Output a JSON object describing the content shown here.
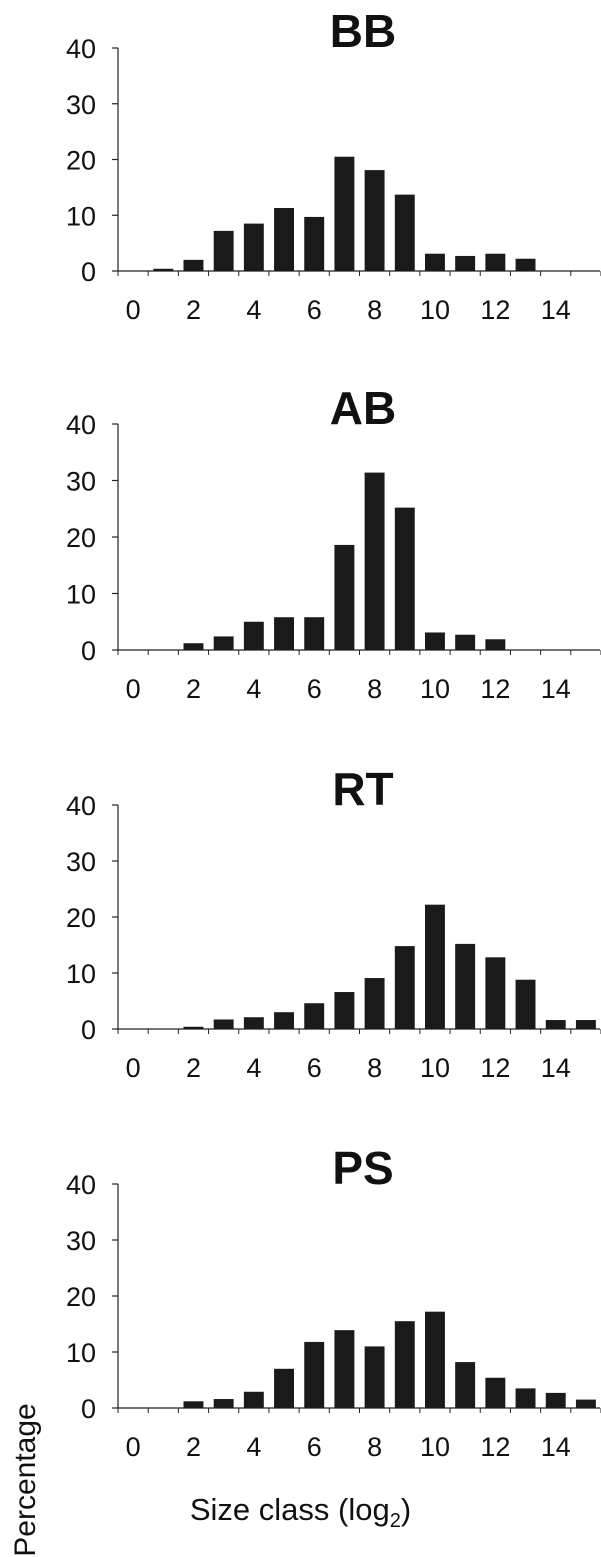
{
  "chart_data": [
    {
      "type": "bar",
      "title": "BB",
      "x": [
        1,
        2,
        3,
        4,
        5,
        6,
        7,
        8,
        9,
        10,
        11,
        12,
        13
      ],
      "values": [
        0.4,
        2.0,
        7.2,
        8.5,
        11.3,
        9.7,
        20.5,
        18.1,
        13.7,
        3.1,
        2.7,
        3.1,
        2.2
      ],
      "ylim": [
        0,
        40
      ],
      "yticks": [
        0,
        10,
        20,
        30,
        40
      ],
      "xticks": [
        0,
        2,
        4,
        6,
        8,
        10,
        12,
        14
      ],
      "xlim": [
        -0.5,
        15.5
      ],
      "grid": false
    },
    {
      "type": "bar",
      "title": "AB",
      "x": [
        2,
        3,
        4,
        5,
        6,
        7,
        8,
        9,
        10,
        11,
        12
      ],
      "values": [
        1.2,
        2.4,
        5.0,
        5.8,
        5.8,
        18.6,
        31.4,
        25.2,
        3.1,
        2.7,
        1.9
      ],
      "ylim": [
        0,
        40
      ],
      "yticks": [
        0,
        10,
        20,
        30,
        40
      ],
      "xticks": [
        0,
        2,
        4,
        6,
        8,
        10,
        12,
        14
      ],
      "xlim": [
        -0.5,
        15.5
      ],
      "grid": false
    },
    {
      "type": "bar",
      "title": "RT",
      "x": [
        2,
        3,
        4,
        5,
        6,
        7,
        8,
        9,
        10,
        11,
        12,
        13,
        14,
        15
      ],
      "values": [
        0.4,
        1.7,
        2.1,
        3.0,
        4.6,
        6.6,
        9.1,
        14.8,
        22.2,
        15.2,
        12.8,
        8.8,
        1.6,
        1.6
      ],
      "ylim": [
        0,
        40
      ],
      "yticks": [
        0,
        10,
        20,
        30,
        40
      ],
      "xticks": [
        0,
        2,
        4,
        6,
        8,
        10,
        12,
        14
      ],
      "xlim": [
        -0.5,
        15.5
      ],
      "grid": false
    },
    {
      "type": "bar",
      "title": "PS",
      "x": [
        2,
        3,
        4,
        5,
        6,
        7,
        8,
        9,
        10,
        11,
        12,
        13,
        14,
        15
      ],
      "values": [
        1.2,
        1.6,
        2.9,
        7.0,
        11.8,
        13.9,
        11.0,
        15.5,
        17.2,
        8.2,
        5.4,
        3.5,
        2.7,
        1.5
      ],
      "ylim": [
        0,
        40
      ],
      "yticks": [
        0,
        10,
        20,
        30,
        40
      ],
      "xticks": [
        0,
        2,
        4,
        6,
        8,
        10,
        12,
        14
      ],
      "xlim": [
        -0.5,
        15.5
      ],
      "grid": false
    }
  ],
  "shared": {
    "ylabel": "Percentage",
    "xlabel": "Size class (log",
    "xlabel_sub": "2",
    "xlabel_end": ")"
  },
  "colors": {
    "bar": "#1a1a1a",
    "axis": "#222222"
  }
}
